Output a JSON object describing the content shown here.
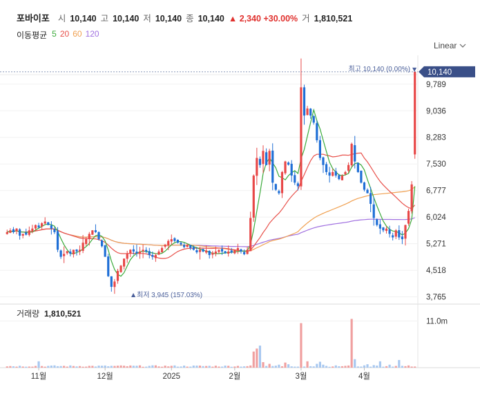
{
  "header": {
    "name": "포바이포",
    "open_label": "시",
    "open": "10,140",
    "high_label": "고",
    "high": "10,140",
    "low_label": "저",
    "low": "10,140",
    "close_label": "종",
    "close": "10,140",
    "change": "▲ 2,340 +30.00%",
    "volume_label": "거",
    "volume": "1,810,521"
  },
  "moving_average": {
    "label": "이동평균",
    "periods": [
      {
        "label": "5",
        "color": "#3aaa3a"
      },
      {
        "label": "20",
        "color": "#e8504a"
      },
      {
        "label": "60",
        "color": "#f0a050"
      },
      {
        "label": "120",
        "color": "#a070e0"
      }
    ]
  },
  "scale_label": "Linear",
  "colors": {
    "up": "#e84848",
    "down": "#1f6fd6",
    "vol_up": "#f0a0a0",
    "vol_down": "#a8c8f0",
    "last_price_bg": "#3a4f88"
  },
  "chart_data": {
    "type": "candlestick",
    "last_price": 10140,
    "last_price_label": "10,140",
    "high_annotation": "최고 10,140 (0.00%)",
    "low_annotation": "최저 3,945 (157.03%)",
    "y_ticks": [
      {
        "value": 9789,
        "label": "9,789"
      },
      {
        "value": 9036,
        "label": "9,036"
      },
      {
        "value": 8283,
        "label": "8,283"
      },
      {
        "value": 7530,
        "label": "7,530"
      },
      {
        "value": 6777,
        "label": "6,777"
      },
      {
        "value": 6024,
        "label": "6,024"
      },
      {
        "value": 5271,
        "label": "5,271"
      },
      {
        "value": 4518,
        "label": "4,518"
      },
      {
        "value": 3765,
        "label": "3,765"
      }
    ],
    "ylim": [
      3640,
      10450
    ],
    "x_labels": [
      {
        "index": 10,
        "label": "11월"
      },
      {
        "index": 31,
        "label": "12월"
      },
      {
        "index": 52,
        "label": "2025"
      },
      {
        "index": 72,
        "label": "2월"
      },
      {
        "index": 93,
        "label": "3월"
      },
      {
        "index": 113,
        "label": "4월"
      }
    ],
    "volume": {
      "title": "거래량",
      "value": "1,810,521",
      "tick_label": "11.0m",
      "tick_value": 11000000,
      "ylim": [
        0,
        14500000
      ]
    },
    "trend": [
      5600,
      5650,
      5600,
      5700,
      5500,
      5550,
      5600,
      5650,
      5700,
      5800,
      5800,
      5850,
      5900,
      5800,
      5700,
      5600,
      5100,
      4900,
      4900,
      5000,
      5050,
      5100,
      5050,
      5100,
      5300,
      5400,
      5550,
      5650,
      5600,
      5400,
      5200,
      4900,
      4350,
      4050,
      4200,
      4500,
      4650,
      4850,
      5000,
      5100,
      5050,
      5000,
      5050,
      5100,
      5050,
      4950,
      4900,
      4950,
      5050,
      5150,
      5250,
      5350,
      5400,
      5350,
      5300,
      5250,
      5250,
      5200,
      5150,
      5100,
      5100,
      5050,
      5050,
      5000,
      4950,
      4950,
      5000,
      5050,
      5050,
      5000,
      5000,
      5050,
      5100,
      5100,
      5050,
      5000,
      5100,
      6000,
      7200,
      7700,
      7500,
      7900,
      7500,
      7900,
      7000,
      6800,
      6700,
      7300,
      7600,
      7600,
      7200,
      7000,
      6900,
      9700,
      8900,
      9100,
      8900,
      8700,
      8200,
      7700,
      7500,
      7300,
      7200,
      7300,
      7200,
      7100,
      7200,
      7300,
      7500,
      8100,
      7600,
      7300,
      7000,
      6800,
      6700,
      6400,
      6000,
      5800,
      5700,
      5650,
      5700,
      5550,
      5550,
      5650,
      5450,
      5400,
      5800,
      6200,
      6950,
      10140
    ]
  }
}
